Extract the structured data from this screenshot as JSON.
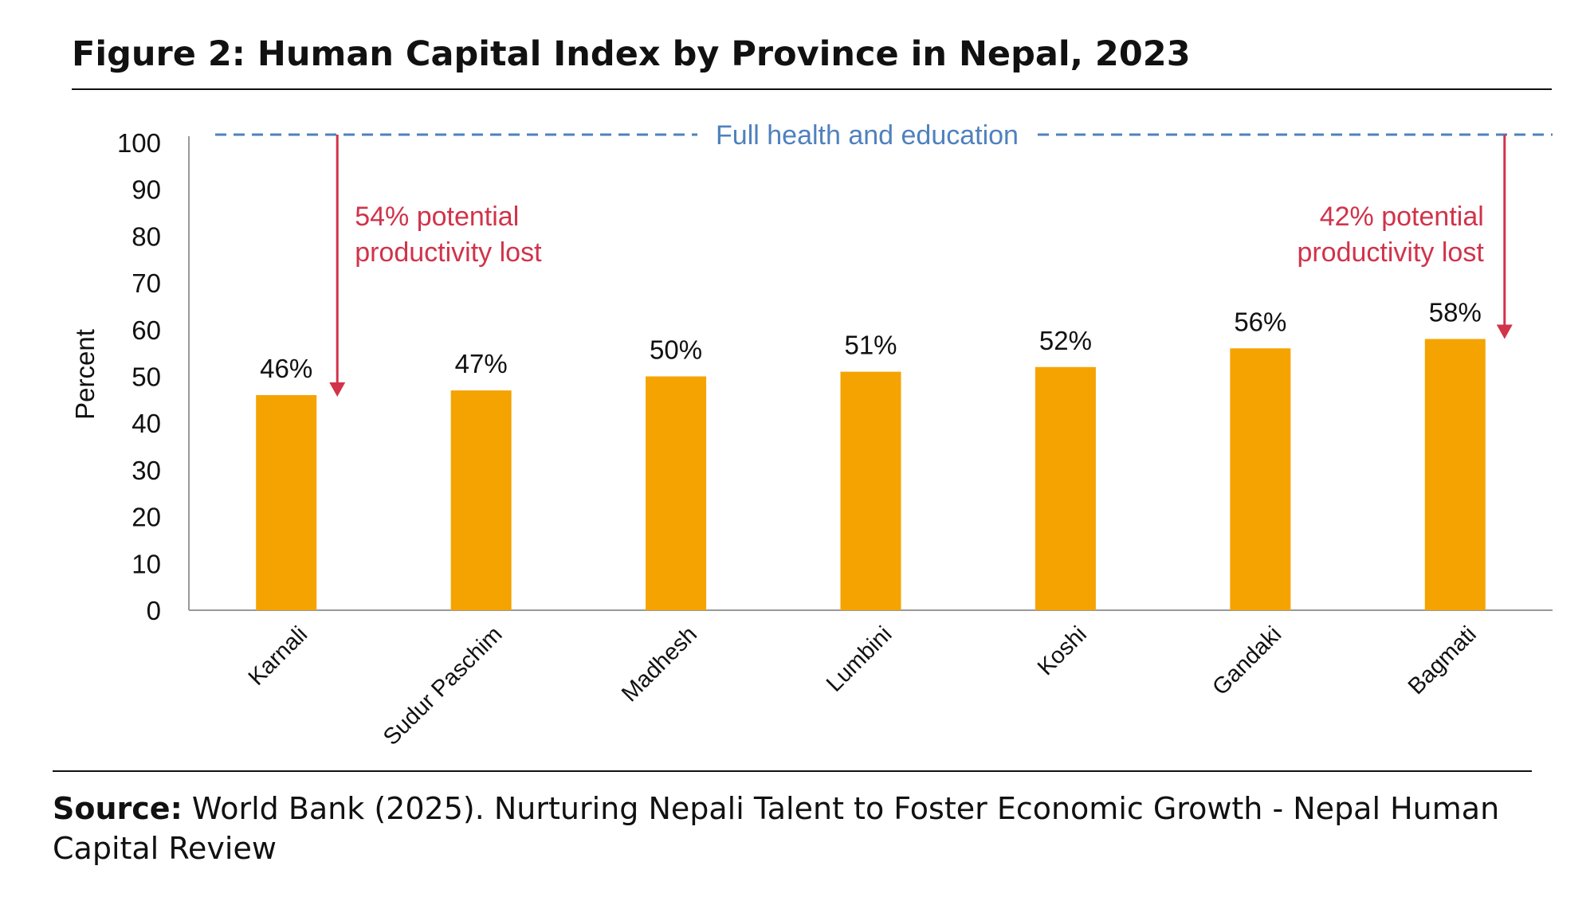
{
  "chart_data": {
    "type": "bar",
    "title": "Figure 2: Human Capital Index by Province in Nepal, 2023",
    "ylabel": "Percent",
    "xlabel": "",
    "ylim": [
      0,
      100
    ],
    "yticks": [
      "0",
      "10",
      "20",
      "30",
      "40",
      "50",
      "60",
      "70",
      "80",
      "90",
      "100"
    ],
    "categories": [
      "Karnali",
      "Sudur Paschim",
      "Madhesh",
      "Lumbini",
      "Koshi",
      "Gandaki",
      "Bagmati"
    ],
    "values": [
      46,
      47,
      50,
      51,
      52,
      56,
      58
    ],
    "data_labels": [
      "46%",
      "47%",
      "50%",
      "51%",
      "52%",
      "56%",
      "58%"
    ],
    "reference_line": {
      "value": 100,
      "label": "Full health and education"
    },
    "annotations": [
      {
        "line1": "54% potential",
        "line2": "productivity lost",
        "from": 100,
        "to": 46
      },
      {
        "line1": "42% potential",
        "line2": "productivity lost",
        "from": 100,
        "to": 58
      }
    ],
    "colors": {
      "bar": "#F5A300",
      "reference": "#4F81BD",
      "annotation": "#D1334A",
      "text": "#111111"
    }
  },
  "source": {
    "label": "Source:",
    "text_line1": " World Bank (2025). Nurturing Nepali Talent to Foster Economic Growth - Nepal Human",
    "text_line2": "Capital Review"
  }
}
